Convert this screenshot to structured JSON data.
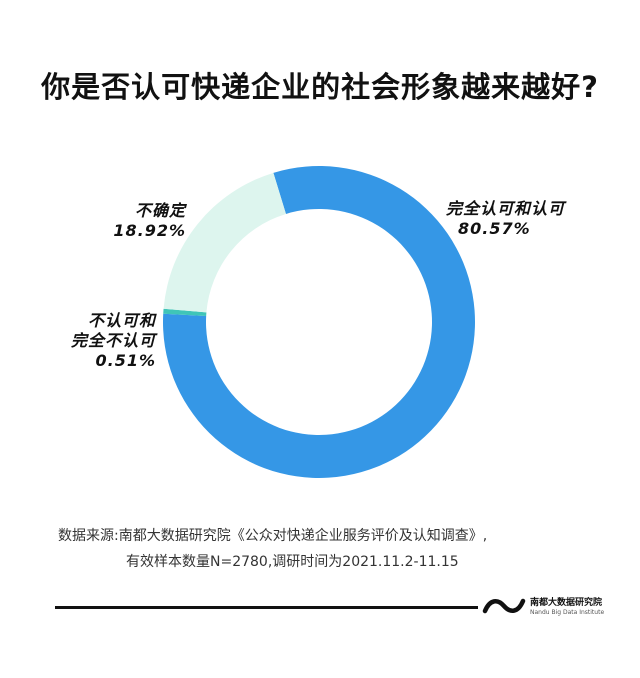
{
  "title": "你是否认可快递企业的社会形象越来越好?",
  "chart_data": {
    "type": "pie",
    "donut": true,
    "slices": [
      {
        "label": "完全认可和认可",
        "value": 80.57,
        "display": "80.57%",
        "color": "#3597E6"
      },
      {
        "label": "不认可和完全不认可",
        "value": 0.51,
        "display": "0.51%",
        "color": "#3FC5B8"
      },
      {
        "label": "不确定",
        "value": 18.92,
        "display": "18.92%",
        "color": "#DDF5EE"
      }
    ],
    "labels": {
      "agree": {
        "name": "完全认可和认可",
        "value": "80.57%"
      },
      "disagree": {
        "line1": "不认可和",
        "line2": "完全不认可",
        "value": "0.51%"
      },
      "unsure": {
        "name": "不确定",
        "value": "18.92%"
      }
    }
  },
  "source": {
    "line1": "数据来源:南都大数据研究院《公众对快递企业服务评价及认知调查》,",
    "line2": "有效样本数量N=2780,调研时间为2021.11.2-11.15"
  },
  "logo": {
    "name": "南都大数据研究院",
    "english": "Nandu Big Data Institute"
  }
}
